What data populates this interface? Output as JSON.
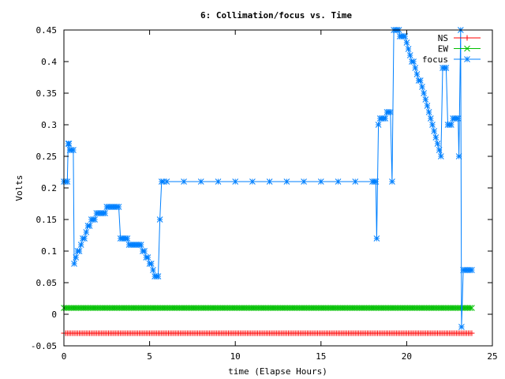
{
  "chart_data": {
    "type": "line",
    "title": "6: Collimation/focus vs. Time",
    "xlabel": "time (Elapse Hours)",
    "ylabel": "Volts",
    "xlim": [
      0,
      25
    ],
    "ylim": [
      -0.05,
      0.45
    ],
    "xticks": [
      0,
      5,
      10,
      15,
      20,
      25
    ],
    "yticks": [
      -0.05,
      0,
      0.05,
      0.1,
      0.15,
      0.2,
      0.25,
      0.3,
      0.35,
      0.4,
      0.45
    ],
    "grid": false,
    "legend_position": "top-right",
    "series": [
      {
        "name": "NS",
        "color": "#ff0000",
        "marker": "plus",
        "constant": true,
        "x_range": [
          0,
          23.8
        ],
        "value": -0.03
      },
      {
        "name": "EW",
        "color": "#00c000",
        "marker": "cross",
        "constant": true,
        "x_range": [
          0,
          23.8
        ],
        "value": 0.01
      },
      {
        "name": "focus",
        "color": "#0080ff",
        "marker": "star",
        "constant": false,
        "points": [
          [
            0.0,
            0.21
          ],
          [
            0.1,
            0.21
          ],
          [
            0.2,
            0.21
          ],
          [
            0.25,
            0.27
          ],
          [
            0.3,
            0.27
          ],
          [
            0.35,
            0.26
          ],
          [
            0.45,
            0.26
          ],
          [
            0.55,
            0.26
          ],
          [
            0.6,
            0.08
          ],
          [
            0.7,
            0.09
          ],
          [
            0.8,
            0.1
          ],
          [
            0.9,
            0.1
          ],
          [
            1.0,
            0.11
          ],
          [
            1.1,
            0.12
          ],
          [
            1.2,
            0.12
          ],
          [
            1.3,
            0.13
          ],
          [
            1.4,
            0.14
          ],
          [
            1.5,
            0.14
          ],
          [
            1.6,
            0.15
          ],
          [
            1.7,
            0.15
          ],
          [
            1.8,
            0.15
          ],
          [
            1.9,
            0.16
          ],
          [
            2.0,
            0.16
          ],
          [
            2.1,
            0.16
          ],
          [
            2.2,
            0.16
          ],
          [
            2.3,
            0.16
          ],
          [
            2.4,
            0.16
          ],
          [
            2.5,
            0.17
          ],
          [
            2.6,
            0.17
          ],
          [
            2.7,
            0.17
          ],
          [
            2.8,
            0.17
          ],
          [
            2.9,
            0.17
          ],
          [
            3.0,
            0.17
          ],
          [
            3.1,
            0.17
          ],
          [
            3.2,
            0.17
          ],
          [
            3.3,
            0.12
          ],
          [
            3.4,
            0.12
          ],
          [
            3.5,
            0.12
          ],
          [
            3.6,
            0.12
          ],
          [
            3.7,
            0.12
          ],
          [
            3.8,
            0.11
          ],
          [
            3.9,
            0.11
          ],
          [
            4.0,
            0.11
          ],
          [
            4.1,
            0.11
          ],
          [
            4.2,
            0.11
          ],
          [
            4.3,
            0.11
          ],
          [
            4.4,
            0.11
          ],
          [
            4.5,
            0.11
          ],
          [
            4.6,
            0.1
          ],
          [
            4.7,
            0.1
          ],
          [
            4.8,
            0.09
          ],
          [
            4.9,
            0.09
          ],
          [
            5.0,
            0.08
          ],
          [
            5.1,
            0.08
          ],
          [
            5.2,
            0.07
          ],
          [
            5.3,
            0.06
          ],
          [
            5.4,
            0.06
          ],
          [
            5.5,
            0.06
          ],
          [
            5.6,
            0.15
          ],
          [
            5.7,
            0.21
          ],
          [
            5.8,
            0.21
          ],
          [
            6.0,
            0.21
          ],
          [
            7.0,
            0.21
          ],
          [
            8.0,
            0.21
          ],
          [
            9.0,
            0.21
          ],
          [
            10.0,
            0.21
          ],
          [
            11.0,
            0.21
          ],
          [
            12.0,
            0.21
          ],
          [
            13.0,
            0.21
          ],
          [
            14.0,
            0.21
          ],
          [
            15.0,
            0.21
          ],
          [
            16.0,
            0.21
          ],
          [
            17.0,
            0.21
          ],
          [
            18.0,
            0.21
          ],
          [
            18.1,
            0.21
          ],
          [
            18.2,
            0.21
          ],
          [
            18.25,
            0.12
          ],
          [
            18.35,
            0.3
          ],
          [
            18.45,
            0.31
          ],
          [
            18.55,
            0.31
          ],
          [
            18.65,
            0.31
          ],
          [
            18.75,
            0.31
          ],
          [
            18.85,
            0.32
          ],
          [
            18.95,
            0.32
          ],
          [
            19.05,
            0.32
          ],
          [
            19.15,
            0.21
          ],
          [
            19.25,
            0.45
          ],
          [
            19.35,
            0.45
          ],
          [
            19.45,
            0.45
          ],
          [
            19.55,
            0.45
          ],
          [
            19.6,
            0.44
          ],
          [
            19.7,
            0.44
          ],
          [
            19.8,
            0.44
          ],
          [
            19.9,
            0.44
          ],
          [
            20.0,
            0.43
          ],
          [
            20.1,
            0.42
          ],
          [
            20.2,
            0.41
          ],
          [
            20.3,
            0.4
          ],
          [
            20.4,
            0.4
          ],
          [
            20.5,
            0.39
          ],
          [
            20.6,
            0.38
          ],
          [
            20.7,
            0.37
          ],
          [
            20.8,
            0.37
          ],
          [
            20.9,
            0.36
          ],
          [
            21.0,
            0.35
          ],
          [
            21.1,
            0.34
          ],
          [
            21.2,
            0.33
          ],
          [
            21.3,
            0.32
          ],
          [
            21.4,
            0.31
          ],
          [
            21.5,
            0.3
          ],
          [
            21.6,
            0.29
          ],
          [
            21.7,
            0.28
          ],
          [
            21.8,
            0.27
          ],
          [
            21.9,
            0.26
          ],
          [
            22.0,
            0.25
          ],
          [
            22.1,
            0.39
          ],
          [
            22.2,
            0.39
          ],
          [
            22.3,
            0.39
          ],
          [
            22.4,
            0.3
          ],
          [
            22.5,
            0.3
          ],
          [
            22.6,
            0.3
          ],
          [
            22.7,
            0.31
          ],
          [
            22.8,
            0.31
          ],
          [
            22.9,
            0.31
          ],
          [
            23.0,
            0.31
          ],
          [
            23.05,
            0.25
          ],
          [
            23.15,
            0.45
          ],
          [
            23.2,
            -0.02
          ],
          [
            23.3,
            0.07
          ],
          [
            23.4,
            0.07
          ],
          [
            23.5,
            0.07
          ],
          [
            23.6,
            0.07
          ],
          [
            23.7,
            0.07
          ],
          [
            23.8,
            0.07
          ]
        ]
      }
    ]
  }
}
